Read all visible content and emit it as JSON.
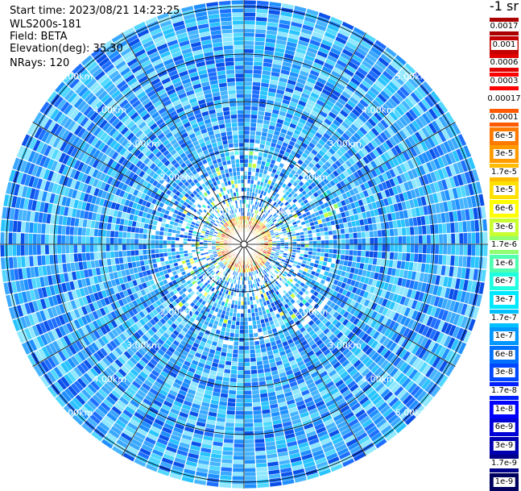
{
  "info": {
    "start_time": "Start time: 2023/08/21 14:23:25",
    "device": "WLS200s-181",
    "field": "Field: BETA",
    "elevation": "Elevation(deg): 35.30",
    "nrays": "NRays: 120"
  },
  "colorbar": {
    "unit_label": "-1 sr",
    "entries": [
      {
        "label": "0.0017",
        "color": "#aa0000"
      },
      {
        "label": "0.001",
        "color": "#c40000"
      },
      {
        "label": "0.0006",
        "color": "#e00000"
      },
      {
        "label": "0.0003",
        "color": "#ff0000"
      },
      {
        "label": "0.00017",
        "color": "#ffffff"
      },
      {
        "label": "0.0001",
        "color": "#ff5a00"
      },
      {
        "label": "6e-5",
        "color": "#ff7a00"
      },
      {
        "label": "3e-5",
        "color": "#ff9a00"
      },
      {
        "label": "1.7e-5",
        "color": "#ffbc00"
      },
      {
        "label": "1e-5",
        "color": "#ffe000"
      },
      {
        "label": "6e-6",
        "color": "#ffff00"
      },
      {
        "label": "3e-6",
        "color": "#c8ff30"
      },
      {
        "label": "1.7e-6",
        "color": "#90ff70"
      },
      {
        "label": "1e-6",
        "color": "#50ffb0"
      },
      {
        "label": "6e-7",
        "color": "#20ffe0"
      },
      {
        "label": "3e-7",
        "color": "#00e8ff"
      },
      {
        "label": "1.7e-7",
        "color": "#00c0ff"
      },
      {
        "label": "1e-7",
        "color": "#0098ff"
      },
      {
        "label": "6e-8",
        "color": "#0070ff"
      },
      {
        "label": "3e-8",
        "color": "#0048ff"
      },
      {
        "label": "1.7e-8",
        "color": "#0020ff"
      },
      {
        "label": "1e-8",
        "color": "#0000ff"
      },
      {
        "label": "6e-9",
        "color": "#0000d8"
      },
      {
        "label": "3e-9",
        "color": "#0000b0"
      },
      {
        "label": "1.7e-9",
        "color": "#000088"
      },
      {
        "label": "1e-9",
        "color": "#00005e"
      }
    ]
  },
  "chart_data": {
    "type": "heatmap",
    "subtype": "polar-ppi-scan",
    "field": "BETA",
    "units": "-1 sr",
    "scale": "log",
    "rays": 120,
    "range_rings_km": [
      1,
      2,
      3,
      4,
      5
    ],
    "ring_labels": {
      "upper_left": [
        "1.00km",
        "2.00km",
        "3.00km",
        "4.00km",
        "5.00km"
      ],
      "upper_right": [
        "1.00km",
        "2.00km",
        "3.00km",
        "4.00km",
        "5.00km"
      ],
      "lower_left": [
        "1.00km",
        "2.00km",
        "3.00km",
        "4.00km",
        "5.00km"
      ],
      "lower_right": [
        "1.00km",
        "2.00km",
        "3.00km",
        "4.00km",
        "5.00km"
      ]
    },
    "background_level": "3e-7",
    "features": [
      {
        "description": "high backscatter ring",
        "range_km": [
          0.2,
          0.55
        ],
        "level": "1e-5"
      },
      {
        "description": "elevated patches",
        "range_km": [
          0.55,
          1.3
        ],
        "level": "1.7e-6"
      }
    ],
    "grid": true
  }
}
